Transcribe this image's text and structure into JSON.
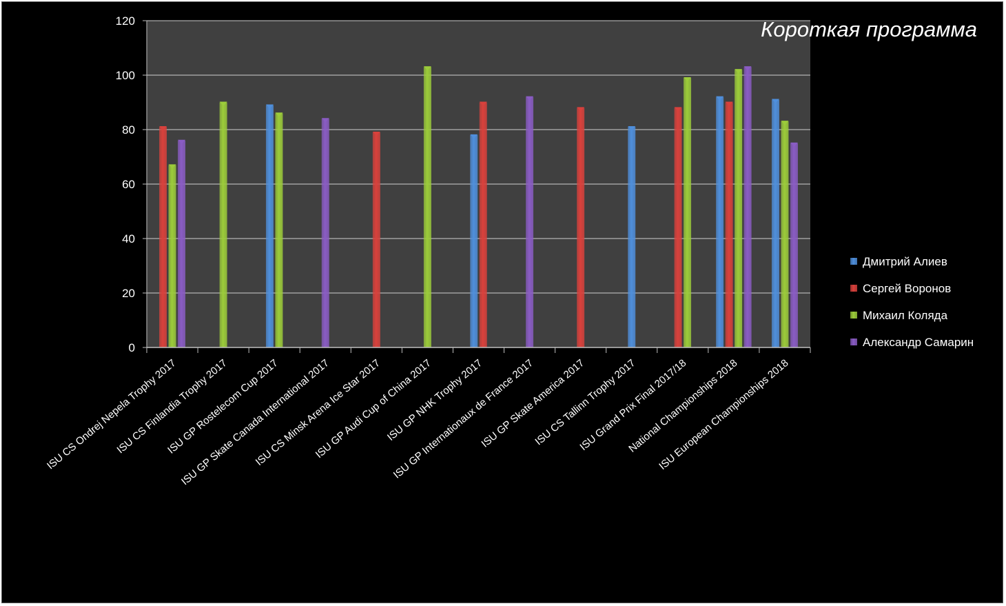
{
  "chart_data": {
    "type": "bar",
    "title": "Короткая программа",
    "xlabel": "",
    "ylabel": "",
    "ylim": [
      0,
      120
    ],
    "yticks": [
      0,
      20,
      40,
      60,
      80,
      100,
      120
    ],
    "grid": true,
    "legend_position": "right",
    "categories": [
      "ISU CS Ondrej Nepela Trophy 2017",
      "ISU CS Finlandia Trophy 2017",
      "ISU GP Rostelecom Cup 2017",
      "ISU GP Skate Canada International 2017",
      "ISU CS Minsk Arena Ice Star 2017",
      "ISU GP Audi Cup of China 2017",
      "ISU GP NHK Trophy 2017",
      "ISU GP Internationaux de France 2017",
      "ISU GP Skate America 2017",
      "ISU CS Tallinn Trophy 2017",
      "ISU Grand Prix Final 2017/18",
      "National Championships 2018",
      "ISU European Championships 2018"
    ],
    "series": [
      {
        "name": "Дмитрий Алиев",
        "color": "#4f8fdc",
        "values": [
          null,
          null,
          89,
          null,
          null,
          null,
          78,
          null,
          null,
          81,
          null,
          92,
          91
        ]
      },
      {
        "name": "Сергей Воронов",
        "color": "#d9413c",
        "values": [
          81,
          null,
          null,
          null,
          79,
          null,
          90,
          null,
          88,
          null,
          88,
          90,
          null
        ]
      },
      {
        "name": "Михаил Коляда",
        "color": "#9ccc3a",
        "values": [
          67,
          90,
          86,
          null,
          null,
          103,
          null,
          null,
          null,
          null,
          99,
          102,
          83
        ]
      },
      {
        "name": "Александр Самарин",
        "color": "#8a5cc4",
        "values": [
          76,
          null,
          null,
          84,
          null,
          null,
          null,
          92,
          null,
          null,
          null,
          103,
          75
        ]
      }
    ],
    "plot_background": "#404040",
    "grid_color": "#cfcfcf"
  }
}
